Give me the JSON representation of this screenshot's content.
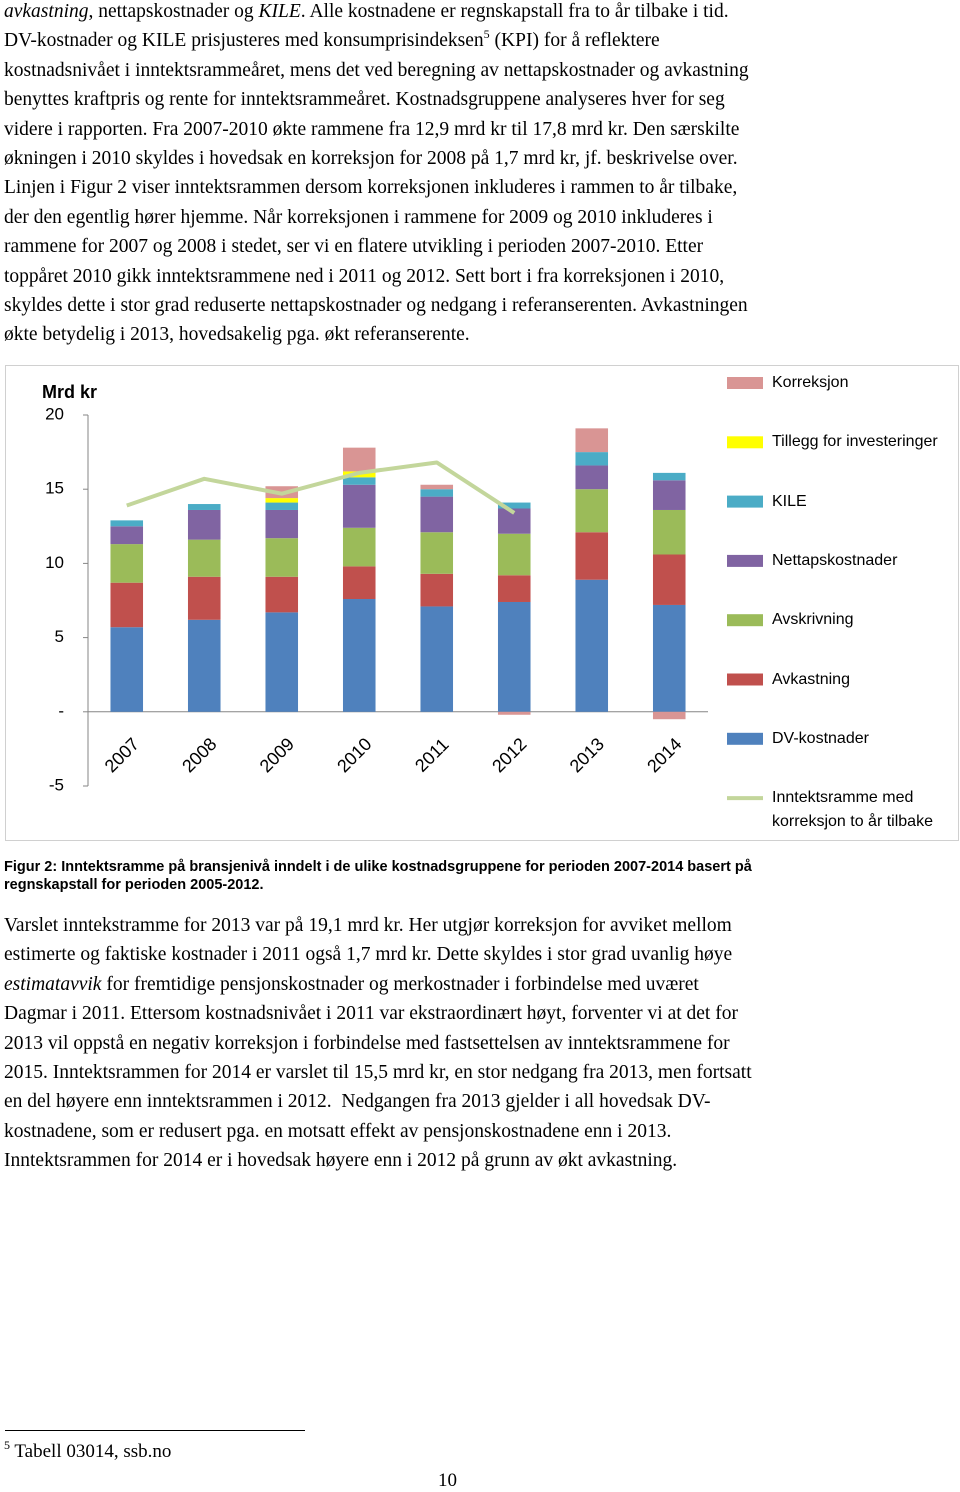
{
  "body_text": [
    {
      "lines": [
        [
          {
            "text": "avkastning",
            "style": "italic"
          },
          ", nettapskostnader og ",
          {
            "text": "KILE",
            "style": "italic"
          },
          ". Alle kostnadene er regnskapstall fra to år tilbake i tid."
        ],
        [
          "DV-kostnader og KILE prisjusteres med konsumprisindeksen",
          {
            "text": "5",
            "style": "sup"
          },
          " (KPI) for å reflektere"
        ],
        [
          "kostnadsnivået i inntektsrammeåret, mens det ved beregning av nettapskostnader og avkastning"
        ],
        [
          "benyttes kraftpris og rente for inntektsrammeåret. Kostnadsgruppene analyseres hver for seg"
        ],
        [
          "videre i rapporten. Fra 2007-2010 økte rammene fra 12,9 mrd kr til 17,8 mrd kr. Den særskilte"
        ],
        [
          "økningen i 2010 skyldes i hovedsak en korreksjon for 2008 på 1,7 mrd kr, jf. beskrivelse over."
        ],
        [
          "Linjen i Figur 2 viser inntektsrammen dersom korreksjonen inkluderes i rammen to år tilbake,"
        ],
        [
          "der den egentlig hører hjemme. Når korreksjonen i rammene for 2009 og 2010 inkluderes i"
        ],
        [
          "rammene for 2007 og 2008 i stedet, ser vi en flatere utvikling i perioden 2007-2010. Etter"
        ],
        [
          "toppåret 2010 gikk inntektsrammene ned i 2011 og 2012. Sett bort i fra korreksjonen i 2010,"
        ],
        [
          "skyldes dette i stor grad reduserte nettapskostnader og nedgang i referanserenten. Avkastningen"
        ],
        [
          "økte betydelig i 2013, hovedsakelig pga. økt referanserente."
        ]
      ]
    },
    {
      "lines": [
        [
          "Varslet inntekstramme for 2013 var på 19,1 mrd kr. Her utgjør korreksjon for avviket mellom"
        ],
        [
          "estimerte og faktiske kostnader i 2011 også 1,7 mrd kr. Dette skyldes i stor grad uvanlig høye"
        ],
        [
          {
            "text": "estimatavvik",
            "style": "italic"
          },
          " for fremtidige pensjonskostnader og merkostnader i forbindelse med uværet"
        ],
        [
          "Dagmar i 2011. Ettersom kostnadsnivået i 2011 var ekstraordinært høyt, forventer vi at det for"
        ],
        [
          "2013 vil oppstå en negativ korreksjon i forbindelse med fastsettelsen av inntektsrammene for"
        ],
        [
          "2015. Inntektsrammen for 2014 er varslet til 15,5 mrd kr, en stor nedgang fra 2013, men fortsatt"
        ],
        [
          "en del høyere enn inntektsrammen i 2012.  Nedgangen fra 2013 gjelder i all hovedsak DV-"
        ],
        [
          "kostnadene, som er redusert pga. en motsatt effekt av pensjonskostnadene enn i 2013."
        ],
        [
          "Inntektsrammen for 2014 er i hovedsak høyere enn i 2012 på grunn av økt avkastning."
        ]
      ]
    }
  ],
  "chart_data": {
    "type": "bar",
    "stacked": true,
    "y_axis_label": "Mrd kr",
    "categories": [
      "2007",
      "2008",
      "2009",
      "2010",
      "2011",
      "2012",
      "2013",
      "2014"
    ],
    "ylim": [
      -5,
      20
    ],
    "yticks": [
      20,
      15,
      10,
      5,
      {
        "value": 0,
        "label": "-"
      },
      -5
    ],
    "grid": false,
    "legend": "right",
    "series": [
      {
        "name": "DV-kostnader",
        "color": "#4f81bd",
        "values": [
          5.7,
          6.2,
          6.7,
          7.6,
          7.1,
          7.4,
          8.9,
          7.2
        ]
      },
      {
        "name": "Avkastning",
        "color": "#c0504d",
        "values": [
          3.0,
          2.9,
          2.4,
          2.2,
          2.2,
          1.8,
          3.2,
          3.4
        ]
      },
      {
        "name": "Avskrivning",
        "color": "#9bbb59",
        "values": [
          2.6,
          2.5,
          2.6,
          2.6,
          2.8,
          2.8,
          2.9,
          3.0
        ]
      },
      {
        "name": "Nettapskostnader",
        "color": "#8064a2",
        "values": [
          1.2,
          2.0,
          1.9,
          2.9,
          2.4,
          1.7,
          1.6,
          2.0
        ]
      },
      {
        "name": "KILE",
        "color": "#4bacc6",
        "values": [
          0.4,
          0.4,
          0.5,
          0.5,
          0.5,
          0.4,
          0.9,
          0.5
        ]
      },
      {
        "name": "Tillegg for investeringer",
        "color": "#ffff00",
        "values": [
          0,
          0,
          0.3,
          0.4,
          0,
          0,
          0,
          0
        ]
      },
      {
        "name": "Korreksjon",
        "color": "#d99594",
        "values": [
          0,
          0,
          0.8,
          1.6,
          0.3,
          -0.2,
          1.6,
          -0.5
        ]
      },
      {
        "name": "Inntektsramme med korreksjon to år tilbake",
        "type": "line",
        "color": "#c3d69b",
        "values": [
          13.9,
          15.7,
          14.7,
          16.1,
          16.8,
          13.4,
          null,
          null
        ]
      }
    ]
  },
  "caption": [
    "Figur 2: Inntektsramme på bransjenivå inndelt i de ulike kostnadsgruppene for perioden 2007-2014 basert på",
    "regnskapstall for perioden 2005-2012."
  ],
  "footnote": {
    "number": "5",
    "text": " Tabell 03014, ssb.no"
  },
  "page_number": "10"
}
